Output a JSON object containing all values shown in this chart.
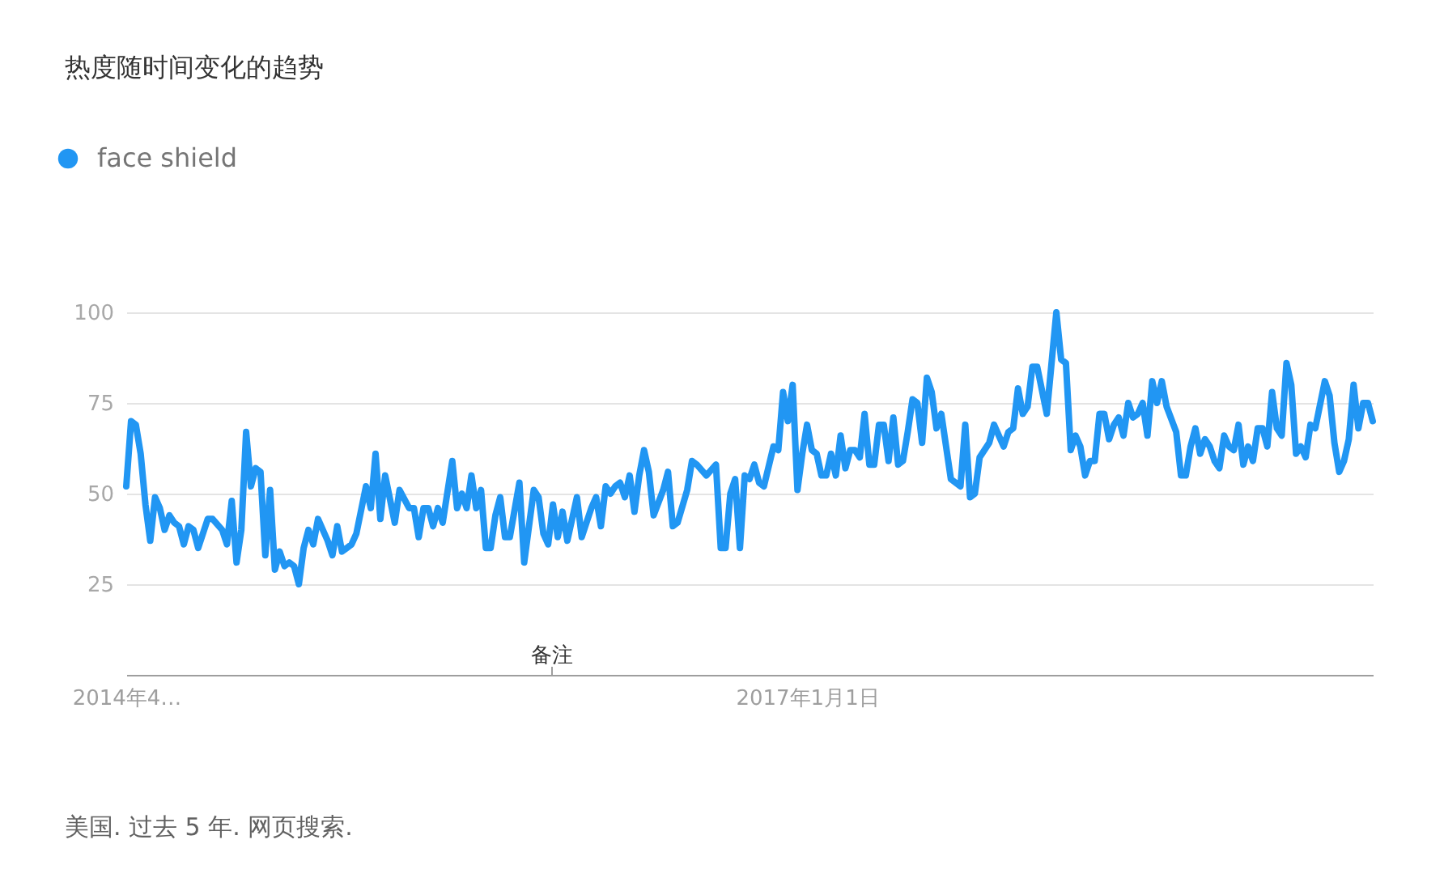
{
  "chart_data": {
    "type": "line",
    "title": "热度随时间变化的趋势",
    "annotations": [
      "备注",
      "美国. 过去 5 年. 网页搜索."
    ],
    "series": [
      {
        "name": "face shield",
        "color": "#2196f3",
        "x": [
          "2014-04-13",
          "2014-04-20",
          "2014-04-27",
          "2014-05-04",
          "2014-05-11",
          "2014-05-18",
          "2014-05-25",
          "2014-06-01",
          "2014-06-08",
          "2014-06-15",
          "2014-06-22",
          "2014-06-29",
          "2014-07-06",
          "2014-07-13",
          "2014-07-20",
          "2014-07-27",
          "2014-08-03",
          "2014-08-10",
          "2014-08-17",
          "2014-08-31",
          "2014-09-07",
          "2014-09-14",
          "2014-09-21",
          "2014-09-28",
          "2014-10-05",
          "2014-10-12",
          "2014-10-19",
          "2014-10-26",
          "2014-11-02",
          "2014-11-09",
          "2014-11-16",
          "2014-11-23",
          "2014-11-30",
          "2014-12-07",
          "2014-12-14",
          "2014-12-21",
          "2014-12-28",
          "2015-01-04",
          "2015-01-11",
          "2015-01-18",
          "2015-02-01",
          "2015-02-08",
          "2015-02-15",
          "2015-02-22",
          "2015-03-01",
          "2015-03-08",
          "2015-03-15",
          "2015-03-29",
          "2015-04-05",
          "2015-04-12",
          "2015-04-19",
          "2015-04-26",
          "2015-05-10",
          "2015-05-17",
          "2015-05-31",
          "2015-06-07",
          "2015-06-14",
          "2015-06-21",
          "2015-06-28",
          "2015-07-05",
          "2015-07-12",
          "2015-07-19",
          "2015-08-02",
          "2015-08-09",
          "2015-08-16",
          "2015-08-23",
          "2015-08-30",
          "2015-09-06",
          "2015-09-13",
          "2015-09-20",
          "2015-09-27",
          "2015-10-04",
          "2015-10-11",
          "2015-10-18",
          "2015-10-25",
          "2015-11-08",
          "2015-11-15",
          "2015-11-29",
          "2015-12-06",
          "2015-12-13",
          "2015-12-20",
          "2015-12-27",
          "2016-01-03",
          "2016-01-10",
          "2016-01-17",
          "2016-01-31",
          "2016-02-07",
          "2016-02-14",
          "2016-02-21",
          "2016-02-28",
          "2016-03-06",
          "2016-03-13",
          "2016-03-20",
          "2016-03-27",
          "2016-04-03",
          "2016-04-10",
          "2016-04-17",
          "2016-04-24",
          "2016-05-01",
          "2016-05-08",
          "2016-05-15",
          "2016-05-22",
          "2016-06-05",
          "2016-06-12",
          "2016-06-19",
          "2016-06-26",
          "2016-07-10",
          "2016-07-17",
          "2016-07-24",
          "2016-08-07",
          "2016-08-21",
          "2016-08-28",
          "2016-09-04",
          "2016-09-11",
          "2016-09-18",
          "2016-09-25",
          "2016-10-02",
          "2016-10-09",
          "2016-10-16",
          "2016-10-23",
          "2016-10-30",
          "2016-11-13",
          "2016-11-20",
          "2016-11-27",
          "2016-12-04",
          "2016-12-11",
          "2016-12-18",
          "2016-12-25",
          "2017-01-01",
          "2017-01-08",
          "2017-01-15",
          "2017-01-22",
          "2017-01-29",
          "2017-02-05",
          "2017-02-12",
          "2017-02-19",
          "2017-02-26",
          "2017-03-05",
          "2017-03-12",
          "2017-03-19",
          "2017-03-26",
          "2017-04-02",
          "2017-04-09",
          "2017-04-16",
          "2017-04-23",
          "2017-04-30",
          "2017-05-07",
          "2017-05-14",
          "2017-05-21",
          "2017-05-28",
          "2017-06-04",
          "2017-06-11",
          "2017-06-18",
          "2017-06-25",
          "2017-07-02",
          "2017-07-09",
          "2017-07-16",
          "2017-07-30",
          "2017-08-13",
          "2017-08-20",
          "2017-08-27",
          "2017-09-03",
          "2017-09-10",
          "2017-09-17",
          "2017-09-24",
          "2017-10-01",
          "2017-10-08",
          "2017-10-15",
          "2017-10-22",
          "2017-10-29",
          "2017-11-05",
          "2017-11-12",
          "2017-11-19",
          "2017-11-26",
          "2017-12-03",
          "2017-12-17",
          "2017-12-31",
          "2018-01-07",
          "2018-01-14",
          "2018-01-21",
          "2018-01-28",
          "2018-02-04",
          "2018-02-11",
          "2018-02-18",
          "2018-02-25",
          "2018-03-04",
          "2018-03-11",
          "2018-03-18",
          "2018-03-25",
          "2018-04-01",
          "2018-04-08",
          "2018-04-15",
          "2018-04-22",
          "2018-04-29",
          "2018-05-06",
          "2018-05-13",
          "2018-05-20",
          "2018-05-27",
          "2018-06-03",
          "2018-06-10",
          "2018-06-24",
          "2018-07-01",
          "2018-07-08",
          "2018-07-15",
          "2018-07-22",
          "2018-07-29",
          "2018-08-05",
          "2018-08-12",
          "2018-08-19",
          "2018-08-26",
          "2018-09-02",
          "2018-09-09",
          "2018-09-16",
          "2018-09-23",
          "2018-09-30",
          "2018-10-07",
          "2018-10-14",
          "2018-10-21",
          "2018-10-28",
          "2018-11-04",
          "2018-11-11",
          "2018-11-18",
          "2018-11-25",
          "2018-12-02",
          "2018-12-09",
          "2018-12-16",
          "2018-12-23",
          "2018-12-30",
          "2019-01-06",
          "2019-01-13",
          "2019-01-27",
          "2019-02-03",
          "2019-02-10",
          "2019-02-17",
          "2019-02-24",
          "2019-03-03",
          "2019-03-10",
          "2019-03-17",
          "2019-03-24",
          "2019-03-31",
          "2019-04-07"
        ],
        "values": [
          52,
          70,
          69,
          61,
          47,
          37,
          49,
          46,
          40,
          44,
          42,
          41,
          36,
          41,
          40,
          35,
          39,
          43,
          43,
          40,
          36,
          48,
          31,
          40,
          67,
          52,
          57,
          56,
          33,
          51,
          29,
          34,
          30,
          31,
          30,
          25,
          35,
          40,
          36,
          43,
          37,
          33,
          41,
          34,
          35,
          36,
          39,
          52,
          46,
          61,
          43,
          55,
          42,
          51,
          46,
          46,
          38,
          46,
          46,
          41,
          46,
          42,
          59,
          46,
          50,
          46,
          55,
          46,
          51,
          35,
          35,
          44,
          49,
          38,
          38,
          53,
          31,
          51,
          49,
          39,
          36,
          47,
          38,
          45,
          37,
          49,
          38,
          42,
          46,
          49,
          41,
          52,
          50,
          52,
          53,
          49,
          55,
          45,
          55,
          62,
          56,
          44,
          51,
          56,
          41,
          42,
          51,
          59,
          58,
          55,
          58,
          35,
          35,
          50,
          54,
          35,
          55,
          54,
          58,
          53,
          52,
          63,
          62,
          78,
          70,
          80,
          51,
          61,
          69,
          62,
          61,
          55,
          55,
          61,
          55,
          66,
          57,
          62,
          62,
          60,
          72,
          58,
          58,
          69,
          69,
          59,
          71,
          58,
          59,
          67,
          76,
          75,
          64,
          82,
          78,
          68,
          72,
          54,
          52,
          69,
          49,
          50,
          60,
          62,
          64,
          69,
          66,
          63,
          67,
          68,
          79,
          72,
          74,
          85,
          85,
          72,
          100,
          87,
          86,
          62,
          66,
          63,
          55,
          59,
          59,
          72,
          72,
          65,
          69,
          71,
          66,
          75,
          71,
          72,
          75,
          66,
          81,
          75,
          81,
          74,
          67,
          55,
          55,
          63,
          68,
          61,
          65,
          63,
          59,
          57,
          66,
          63,
          62,
          69,
          58,
          63,
          59,
          68,
          68,
          63,
          78,
          68,
          66,
          86,
          80,
          61,
          63,
          60,
          69,
          68,
          81,
          77,
          64,
          56,
          59,
          65,
          80,
          68,
          75,
          75,
          70
        ]
      }
    ],
    "xlim": [
      "2014-04-13",
      "2019-04-07"
    ],
    "xticks": [
      {
        "value": "2014-04-13",
        "label": "2014年4…"
      },
      {
        "value": "2017-01-01",
        "label": "2017年1月1日"
      }
    ],
    "ylim": [
      0,
      100
    ],
    "yticks": [
      25,
      50,
      75,
      100
    ],
    "grid": "y",
    "legend": "top left",
    "line_style": "solid"
  }
}
